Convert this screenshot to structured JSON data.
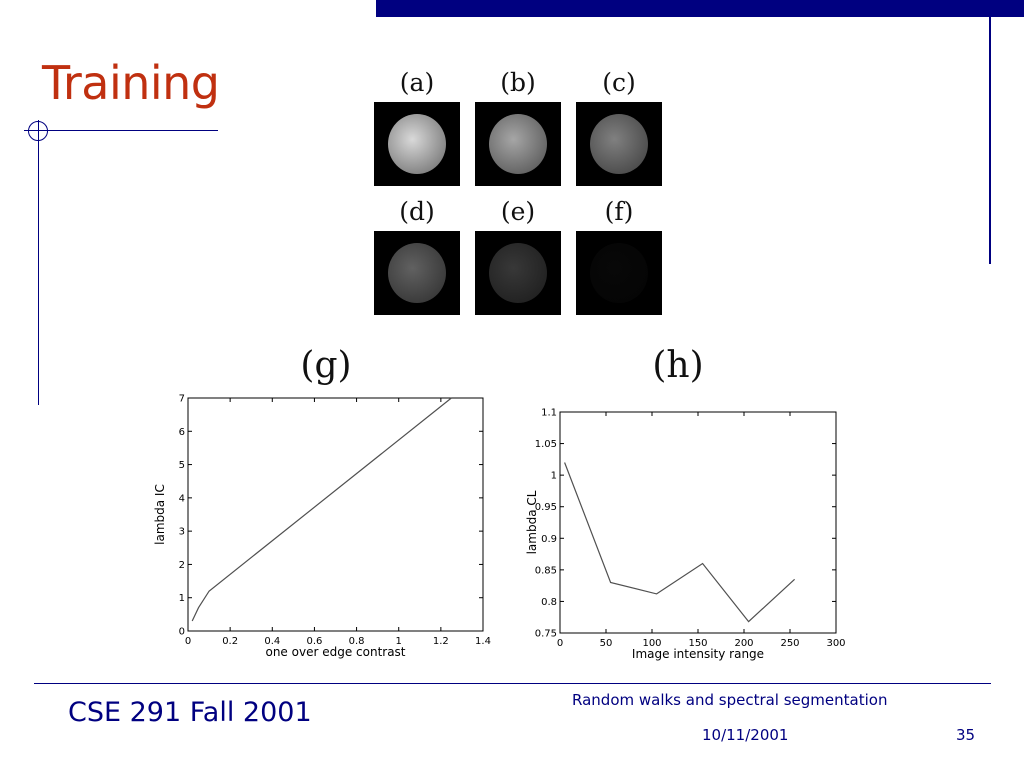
{
  "slide": {
    "title": "Training",
    "footer_left": "CSE 291 Fall 2001",
    "footer_topic": "Random walks and spectral segmentation",
    "footer_date": "10/11/2001",
    "page_number": "35"
  },
  "panels": [
    {
      "label": "(a)",
      "brightness": 0.85
    },
    {
      "label": "(b)",
      "brightness": 0.65
    },
    {
      "label": "(c)",
      "brightness": 0.5
    },
    {
      "label": "(d)",
      "brightness": 0.38
    },
    {
      "label": "(e)",
      "brightness": 0.22
    },
    {
      "label": "(f)",
      "brightness": 0.03
    }
  ],
  "chart_data": [
    {
      "type": "line",
      "panel_label": "(g)",
      "xlabel": "one over edge contrast",
      "ylabel": "lambda IC",
      "xlim": [
        0,
        1.4
      ],
      "ylim": [
        0,
        7
      ],
      "xticks": [
        0,
        0.2,
        0.4,
        0.6,
        0.8,
        1,
        1.2,
        1.4
      ],
      "yticks": [
        0,
        1,
        2,
        3,
        4,
        5,
        6,
        7
      ],
      "xtick_labels": [
        "0",
        "0.2",
        "0.4",
        "0.6",
        "0.8",
        "1",
        "1.2",
        "1.4"
      ],
      "ytick_labels": [
        "0",
        "1",
        "2",
        "3",
        "4",
        "5",
        "6",
        "7"
      ],
      "series": [
        {
          "x": [
            0.02,
            0.05,
            0.1,
            1.25
          ],
          "y": [
            0.3,
            0.7,
            1.2,
            7.0
          ]
        }
      ],
      "grid": false,
      "line_color": "#505050"
    },
    {
      "type": "line",
      "panel_label": "(h)",
      "xlabel": "Image intensity range",
      "ylabel": "lambda CL",
      "xlim": [
        0,
        300
      ],
      "ylim": [
        0.75,
        1.1
      ],
      "xticks": [
        0,
        50,
        100,
        150,
        200,
        250,
        300
      ],
      "yticks": [
        0.75,
        0.8,
        0.85,
        0.9,
        0.95,
        1,
        1.05,
        1.1
      ],
      "xtick_labels": [
        "0",
        "50",
        "100",
        "150",
        "200",
        "250",
        "300"
      ],
      "ytick_labels": [
        "0.75",
        "0.8",
        "0.85",
        "0.9",
        "0.95",
        "1",
        "1.05",
        "1.1"
      ],
      "series": [
        {
          "x": [
            5,
            55,
            105,
            155,
            205,
            255
          ],
          "y": [
            1.02,
            0.83,
            0.812,
            0.86,
            0.768,
            0.835
          ]
        }
      ],
      "grid": false,
      "line_color": "#505050"
    }
  ]
}
